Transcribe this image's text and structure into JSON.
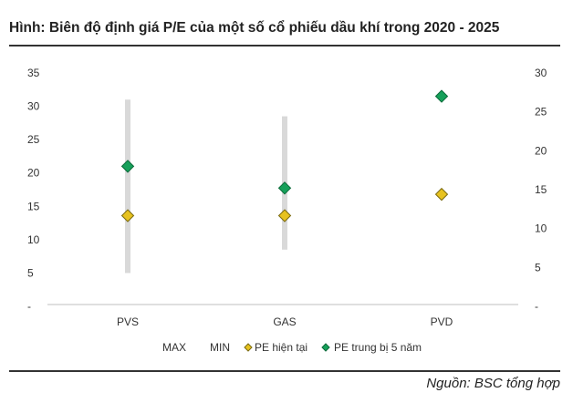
{
  "title": "Hình: Biên độ định giá P/E của một số cổ phiếu dầu khí trong 2020 - 2025",
  "source": "Nguồn: BSC tổng hợp",
  "chart_data": {
    "type": "scatter",
    "title": "Hình: Biên độ định giá P/E của một số cổ phiếu dầu khí trong 2020 - 2025",
    "categories": [
      "PVS",
      "GAS",
      "PVD"
    ],
    "left_axis": {
      "ticks": [
        "35",
        "30",
        "25",
        "20",
        "15",
        "10",
        "5",
        "-"
      ],
      "ylim": [
        0,
        35
      ]
    },
    "right_axis": {
      "ticks": [
        "30",
        "25",
        "20",
        "15",
        "10",
        "5",
        "-"
      ],
      "ylim": [
        0,
        30
      ]
    },
    "series": [
      {
        "name": "MAX",
        "axis": "left",
        "type": "range-top",
        "values": [
          31,
          28.5,
          null
        ],
        "color": "#d9d9d9"
      },
      {
        "name": "MIN",
        "axis": "left",
        "type": "range-bottom",
        "values": [
          5,
          8.5,
          null
        ],
        "color": "#d9d9d9"
      },
      {
        "name": "PE hiện tại",
        "axis": "left",
        "type": "marker",
        "values": [
          13.6,
          13.6,
          16.8
        ],
        "color": "#e7c21f",
        "stroke": "#7a6a10"
      },
      {
        "name": "PE trung bị 5 năm",
        "axis": "right",
        "type": "marker",
        "values": [
          18,
          15.2,
          27
        ],
        "color": "#16a05a",
        "stroke": "#0c6a3a"
      }
    ],
    "legend": [
      "MAX",
      "MIN",
      "PE hiện tại",
      "PE trung bị 5 năm"
    ],
    "legend_position": "bottom",
    "grid": false
  }
}
